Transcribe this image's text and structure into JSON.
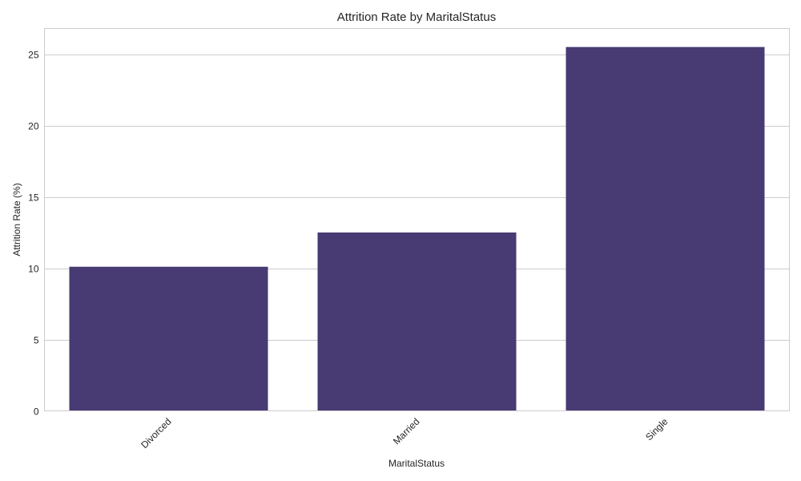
{
  "chart_data": {
    "type": "bar",
    "title": "Attrition Rate by MaritalStatus",
    "xlabel": "MaritalStatus",
    "ylabel": "Attrition Rate (%)",
    "categories": [
      "Divorced",
      "Married",
      "Single"
    ],
    "values": [
      10.1,
      12.5,
      25.5
    ],
    "ylim": [
      0,
      26.8
    ],
    "yticks": [
      0,
      5,
      10,
      15,
      20,
      25
    ],
    "xtick_rotation_deg": 45,
    "grid": "horizontal",
    "bar_color": "#483a73",
    "grid_color": "#cccccc",
    "text_color": "#262626",
    "background": "#ffffff"
  }
}
